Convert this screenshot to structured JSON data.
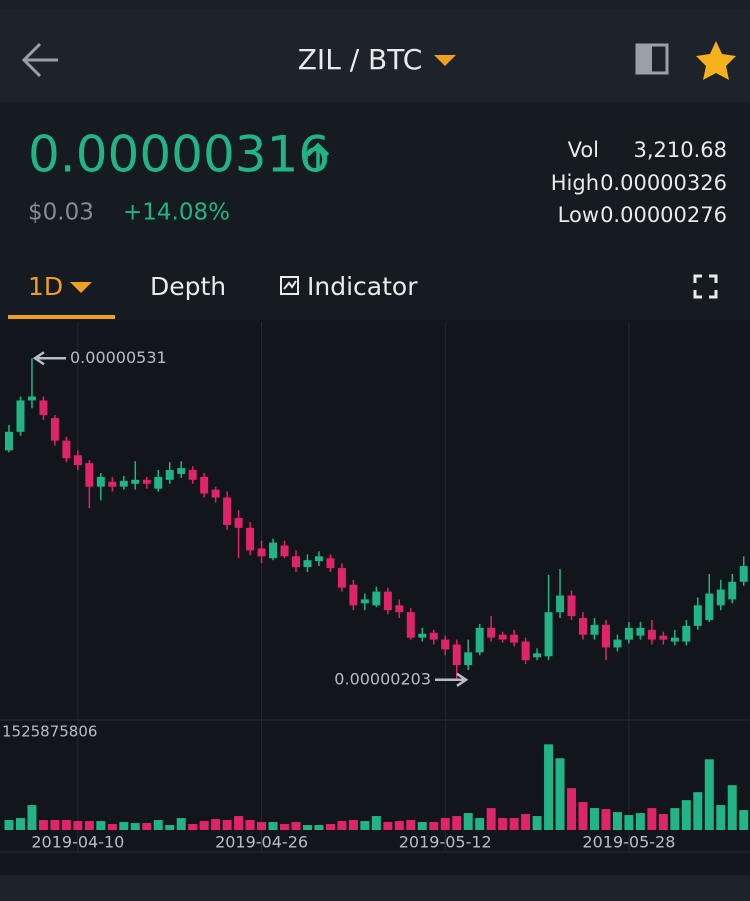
{
  "header": {
    "title": "ZIL / BTC"
  },
  "ticker": {
    "last": "0.00000316",
    "fiat": "$0.03",
    "change": "+14.08%",
    "stats": [
      {
        "label": "Vol",
        "value": "3,210.68"
      },
      {
        "label": "High",
        "value": "0.00000326"
      },
      {
        "label": "Low",
        "value": "0.00000276"
      }
    ]
  },
  "tabs": [
    "1D",
    "Depth",
    "Indicator"
  ],
  "chart_data": {
    "type": "candlestick",
    "x": [
      "2019-04-04",
      "2019-04-05",
      "2019-04-06",
      "2019-04-07",
      "2019-04-08",
      "2019-04-09",
      "2019-04-10",
      "2019-04-11",
      "2019-04-12",
      "2019-04-13",
      "2019-04-14",
      "2019-04-15",
      "2019-04-16",
      "2019-04-17",
      "2019-04-18",
      "2019-04-19",
      "2019-04-20",
      "2019-04-21",
      "2019-04-22",
      "2019-04-23",
      "2019-04-24",
      "2019-04-25",
      "2019-04-26",
      "2019-04-27",
      "2019-04-28",
      "2019-04-29",
      "2019-04-30",
      "2019-05-01",
      "2019-05-02",
      "2019-05-03",
      "2019-05-04",
      "2019-05-05",
      "2019-05-06",
      "2019-05-07",
      "2019-05-08",
      "2019-05-09",
      "2019-05-10",
      "2019-05-11",
      "2019-05-12",
      "2019-05-13",
      "2019-05-14",
      "2019-05-15",
      "2019-05-16",
      "2019-05-17",
      "2019-05-18",
      "2019-05-19",
      "2019-05-20",
      "2019-05-21",
      "2019-05-22",
      "2019-05-23",
      "2019-05-24",
      "2019-05-25",
      "2019-05-26",
      "2019-05-27",
      "2019-05-28",
      "2019-05-29",
      "2019-05-30",
      "2019-05-31",
      "2019-06-01",
      "2019-06-02",
      "2019-06-03",
      "2019-06-04",
      "2019-06-05",
      "2019-06-06",
      "2019-06-07"
    ],
    "open": [
      4.37e-06,
      4.56e-06,
      4.88e-06,
      4.88e-06,
      4.7e-06,
      4.47e-06,
      4.32e-06,
      4.24e-06,
      4e-06,
      4.05e-06,
      4e-06,
      4.03e-06,
      4.07e-06,
      3.98e-06,
      4.07e-06,
      4.13e-06,
      4.17e-06,
      4.1e-06,
      3.97e-06,
      3.89e-06,
      3.68e-06,
      3.58e-06,
      3.37e-06,
      3.27e-06,
      3.4e-06,
      3.29e-06,
      3.18e-06,
      3.24e-06,
      3.27e-06,
      3.17e-06,
      3e-06,
      2.81e-06,
      2.79e-06,
      2.93e-06,
      2.79e-06,
      2.72e-06,
      2.46e-06,
      2.51e-06,
      2.44e-06,
      2.39e-06,
      2.18e-06,
      2.31e-06,
      2.56e-06,
      2.49e-06,
      2.49e-06,
      2.42e-06,
      2.26e-06,
      2.27e-06,
      2.72e-06,
      2.89e-06,
      2.66e-06,
      2.49e-06,
      2.59e-06,
      2.36e-06,
      2.44e-06,
      2.48e-06,
      2.54e-06,
      2.48e-06,
      2.42e-06,
      2.42e-06,
      2.58e-06,
      2.64e-06,
      2.79e-06,
      2.85e-06,
      3.03e-06
    ],
    "high": [
      4.63e-06,
      4.92e-06,
      5.31e-06,
      4.92e-06,
      4.73e-06,
      4.51e-06,
      4.37e-06,
      4.27e-06,
      4.14e-06,
      4.1e-06,
      4.11e-06,
      4.26e-06,
      4.1e-06,
      4.17e-06,
      4.25e-06,
      4.26e-06,
      4.21e-06,
      4.14e-06,
      4e-06,
      3.95e-06,
      3.76e-06,
      3.64e-06,
      3.45e-06,
      3.47e-06,
      3.45e-06,
      3.35e-06,
      3.31e-06,
      3.34e-06,
      3.31e-06,
      3.22e-06,
      3.05e-06,
      2.91e-06,
      2.98e-06,
      2.97e-06,
      2.85e-06,
      2.76e-06,
      2.56e-06,
      2.54e-06,
      2.48e-06,
      2.44e-06,
      2.44e-06,
      2.6e-06,
      2.68e-06,
      2.52e-06,
      2.54e-06,
      2.46e-06,
      2.35e-06,
      3.1e-06,
      3.16e-06,
      2.94e-06,
      2.72e-06,
      2.66e-06,
      2.64e-06,
      2.49e-06,
      2.62e-06,
      2.62e-06,
      2.64e-06,
      2.52e-06,
      2.54e-06,
      2.64e-06,
      2.87e-06,
      3.11e-06,
      3.05e-06,
      3.11e-06,
      3.29e-06
    ],
    "low": [
      4.35e-06,
      4.52e-06,
      4.8e-06,
      4.68e-06,
      4.42e-06,
      4.25e-06,
      4.17e-06,
      3.78e-06,
      3.86e-06,
      3.95e-06,
      3.97e-06,
      3.97e-06,
      3.98e-06,
      3.95e-06,
      4.03e-06,
      4.09e-06,
      4.03e-06,
      3.89e-06,
      3.84e-06,
      3.56e-06,
      3.27e-06,
      3.3e-06,
      3.22e-06,
      3.25e-06,
      3.27e-06,
      3.13e-06,
      3.13e-06,
      3.19e-06,
      3.13e-06,
      2.93e-06,
      2.74e-06,
      2.74e-06,
      2.77e-06,
      2.7e-06,
      2.66e-06,
      2.44e-06,
      2.42e-06,
      2.39e-06,
      2.28e-06,
      2.03e-06,
      2.13e-06,
      2.28e-06,
      2.42e-06,
      2.41e-06,
      2.37e-06,
      2.19e-06,
      2.23e-06,
      2.23e-06,
      2.66e-06,
      2.64e-06,
      2.44e-06,
      2.44e-06,
      2.23e-06,
      2.32e-06,
      2.4e-06,
      2.44e-06,
      2.39e-06,
      2.39e-06,
      2.38e-06,
      2.38e-06,
      2.54e-06,
      2.62e-06,
      2.74e-06,
      2.81e-06,
      2.99e-06
    ],
    "close": [
      4.56e-06,
      4.88e-06,
      4.92e-06,
      4.73e-06,
      4.47e-06,
      4.29e-06,
      4.22e-06,
      4e-06,
      4.1e-06,
      4e-06,
      4.06e-06,
      4.07e-06,
      4.03e-06,
      4.1e-06,
      4.17e-06,
      4.19e-06,
      4.07e-06,
      3.93e-06,
      3.89e-06,
      3.61e-06,
      3.58e-06,
      3.35e-06,
      3.29e-06,
      3.43e-06,
      3.29e-06,
      3.18e-06,
      3.25e-06,
      3.29e-06,
      3.17e-06,
      2.97e-06,
      2.79e-06,
      2.85e-06,
      2.93e-06,
      2.74e-06,
      2.72e-06,
      2.46e-06,
      2.5e-06,
      2.44e-06,
      2.34e-06,
      2.18e-06,
      2.31e-06,
      2.56e-06,
      2.46e-06,
      2.44e-06,
      2.41e-06,
      2.23e-06,
      2.3e-06,
      2.72e-06,
      2.89e-06,
      2.68e-06,
      2.49e-06,
      2.59e-06,
      2.36e-06,
      2.44e-06,
      2.56e-06,
      2.56e-06,
      2.44e-06,
      2.44e-06,
      2.46e-06,
      2.58e-06,
      2.79e-06,
      2.91e-06,
      2.95e-06,
      3.03e-06,
      3.19e-06
    ],
    "volume": [
      160000000,
      192000000,
      400000000,
      160000000,
      160000000,
      160000000,
      144000000,
      144000000,
      144000000,
      96000000,
      128000000,
      112000000,
      112000000,
      160000000,
      80000000,
      192000000,
      96000000,
      144000000,
      176000000,
      160000000,
      224000000,
      160000000,
      128000000,
      128000000,
      96000000,
      128000000,
      80000000,
      80000000,
      96000000,
      144000000,
      160000000,
      144000000,
      224000000,
      128000000,
      144000000,
      160000000,
      128000000,
      128000000,
      192000000,
      224000000,
      272000000,
      192000000,
      352000000,
      192000000,
      192000000,
      256000000,
      224000000,
      1376000000,
      1152000000,
      672000000,
      448000000,
      352000000,
      336000000,
      288000000,
      240000000,
      272000000,
      352000000,
      256000000,
      352000000,
      480000000,
      608000000,
      1136000000,
      400000000,
      720000000,
      320000000
    ],
    "ylim": [
      1.62e-06,
      5.68e-06
    ],
    "vlim": [
      0,
      1525875806
    ],
    "xticks": [
      "2019-04-10",
      "2019-04-26",
      "2019-05-12",
      "2019-05-28"
    ],
    "up_color": "#20b487",
    "down_color": "#e0246a",
    "grid": true
  }
}
